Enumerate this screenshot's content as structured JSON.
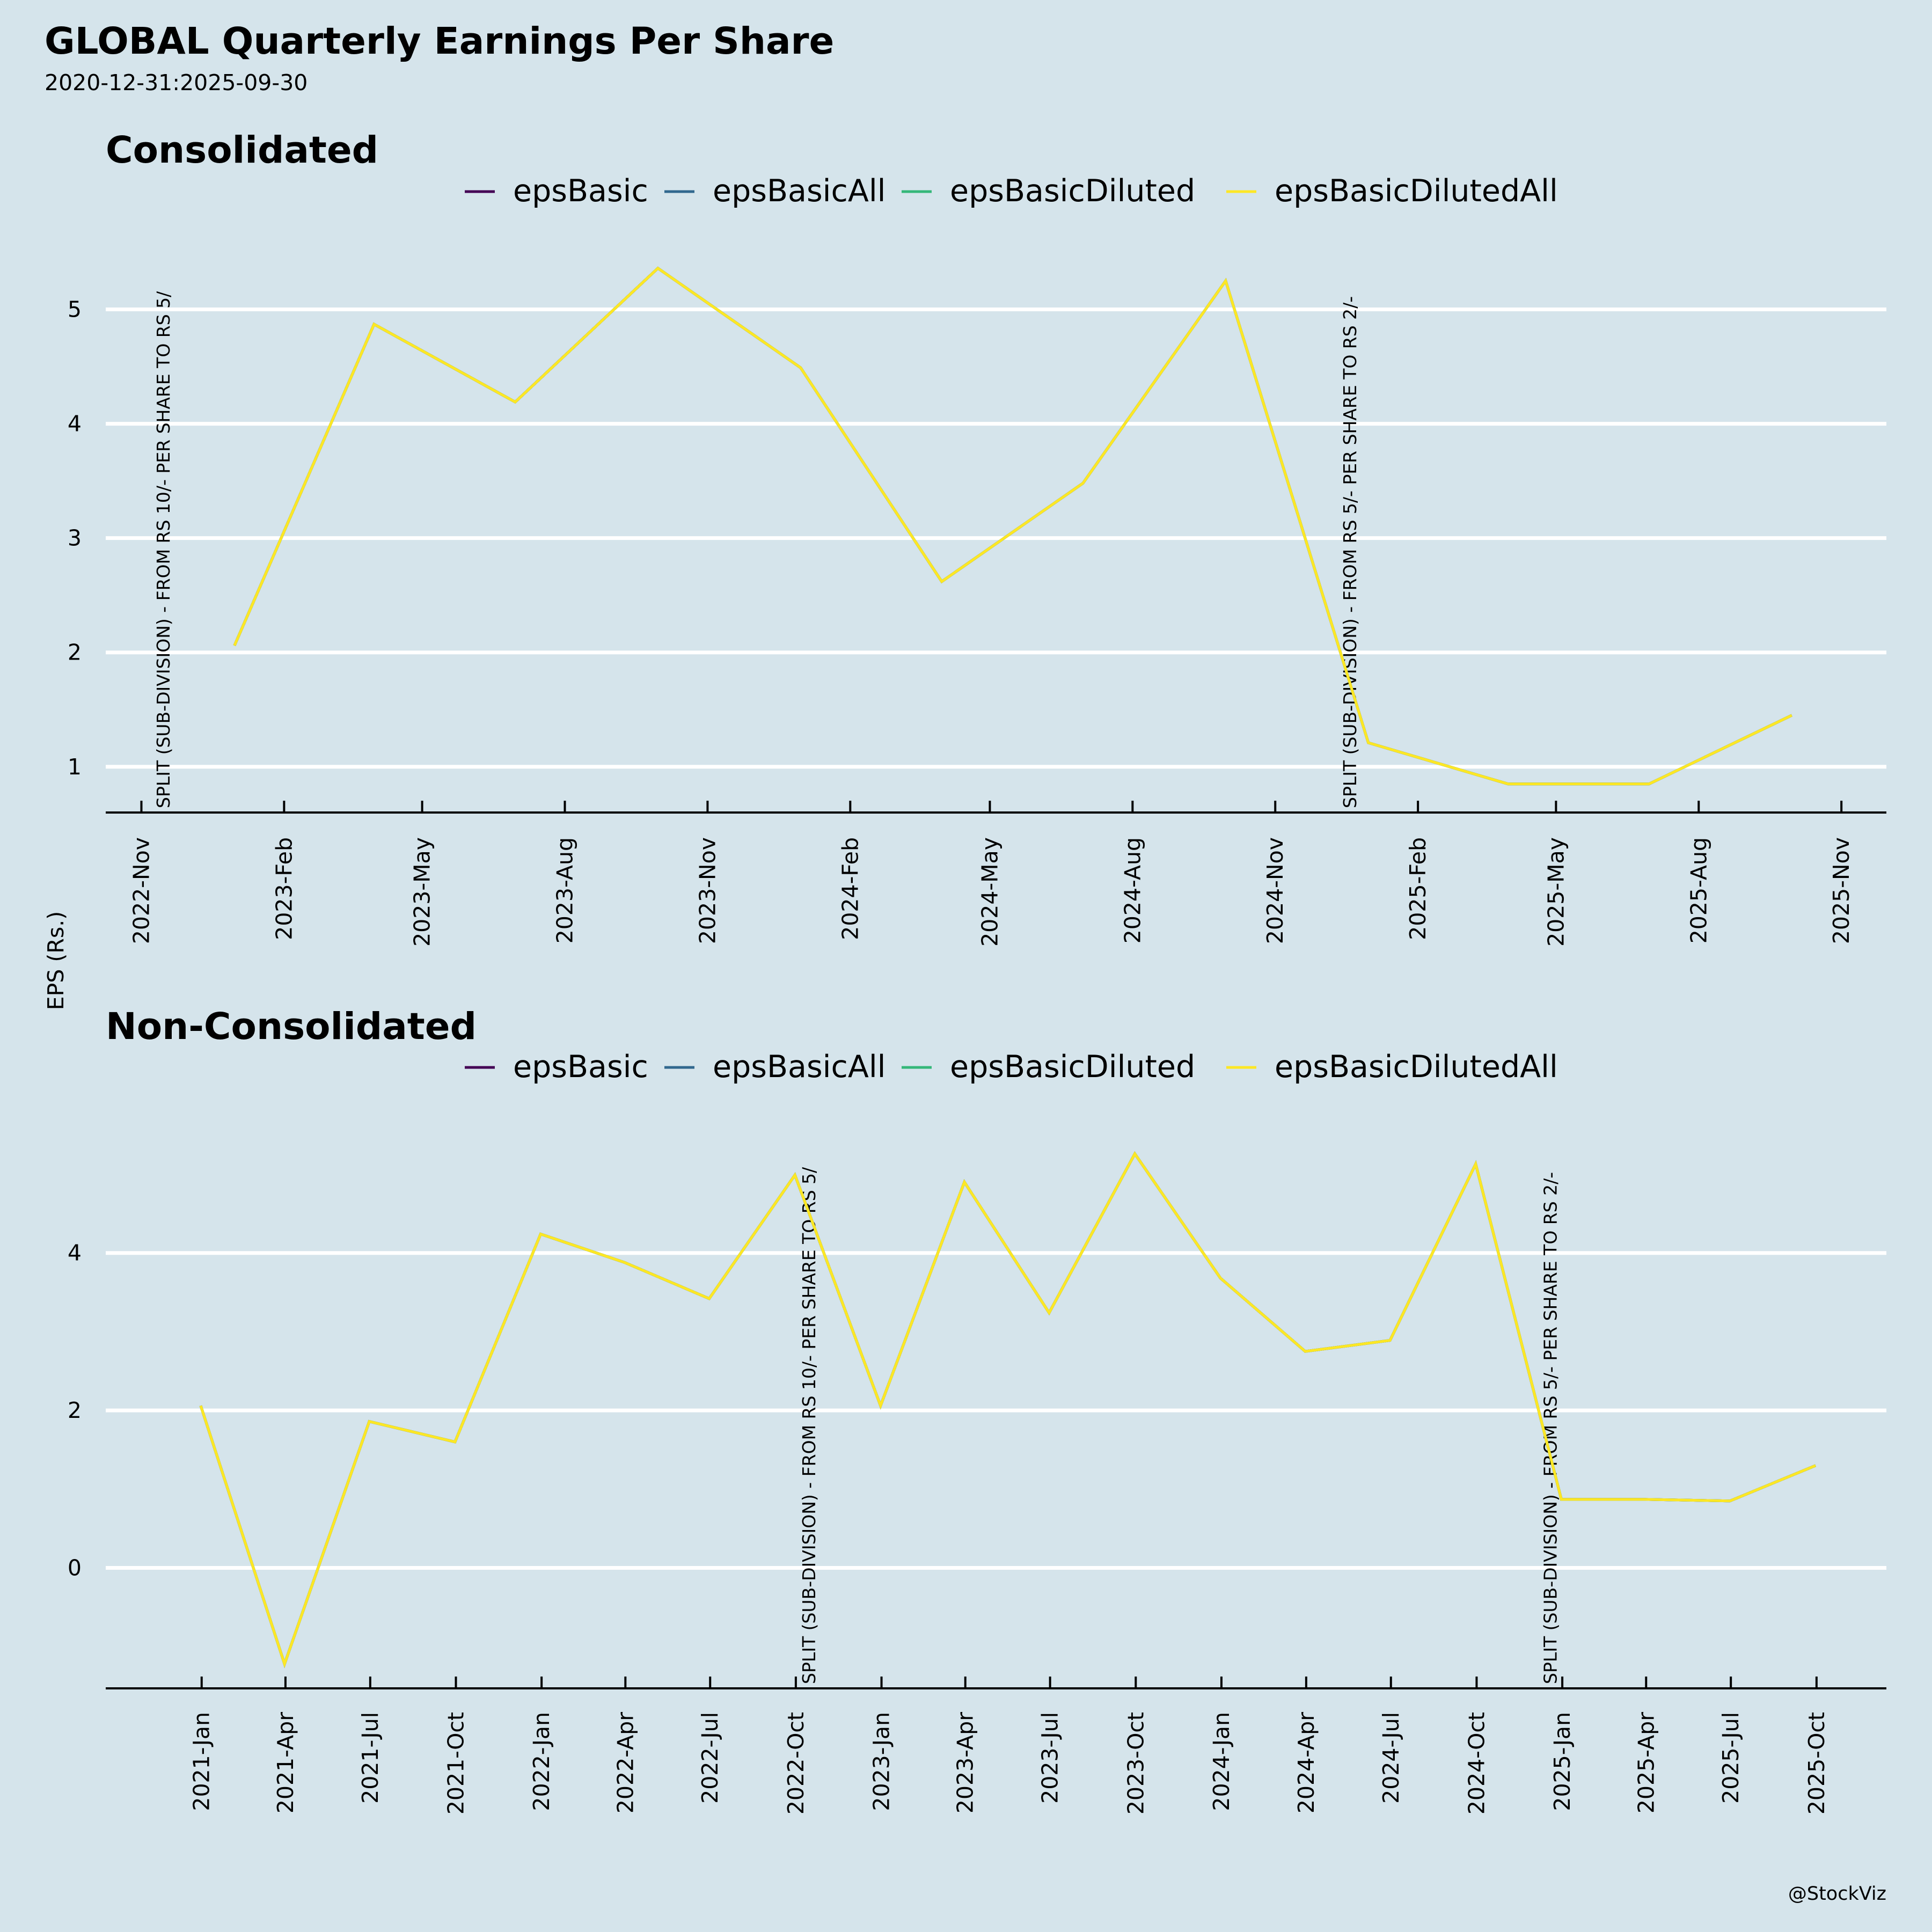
{
  "title": "GLOBAL Quarterly Earnings Per Share",
  "subtitle": "2020-12-31:2025-09-30",
  "ylabel": "EPS (Rs.)",
  "credit": "@StockViz",
  "colors": {
    "background": "#D5E4EB",
    "grid": "#FFFFFF",
    "axis": "#000000",
    "epsBasic": "#440154",
    "epsBasicAll": "#31688E",
    "epsBasicDiluted": "#35B779",
    "epsBasicDilutedAll": "#FDE725"
  },
  "chart_data": [
    {
      "type": "line",
      "title": "Consolidated",
      "legend": [
        "epsBasic",
        "epsBasicAll",
        "epsBasicDiluted",
        "epsBasicDilutedAll"
      ],
      "legend_position": "top-center",
      "ylabel": "EPS (Rs.)",
      "grid": true,
      "ylim": [
        0.6,
        5.5
      ],
      "yticks": [
        1,
        2,
        3,
        4,
        5
      ],
      "xlim": [
        "2022-10-09",
        "2025-11-30"
      ],
      "xticks": [
        {
          "date": "2022-11-01",
          "label": "2022-Nov"
        },
        {
          "date": "2023-02-01",
          "label": "2023-Feb"
        },
        {
          "date": "2023-05-01",
          "label": "2023-May"
        },
        {
          "date": "2023-08-01",
          "label": "2023-Aug"
        },
        {
          "date": "2023-11-01",
          "label": "2023-Nov"
        },
        {
          "date": "2024-02-01",
          "label": "2024-Feb"
        },
        {
          "date": "2024-05-01",
          "label": "2024-May"
        },
        {
          "date": "2024-08-01",
          "label": "2024-Aug"
        },
        {
          "date": "2024-11-01",
          "label": "2024-Nov"
        },
        {
          "date": "2025-02-01",
          "label": "2025-Feb"
        },
        {
          "date": "2025-05-01",
          "label": "2025-May"
        },
        {
          "date": "2025-08-01",
          "label": "2025-Aug"
        },
        {
          "date": "2025-11-01",
          "label": "2025-Nov"
        }
      ],
      "x": [
        "2022-12-31",
        "2023-03-31",
        "2023-06-30",
        "2023-09-30",
        "2023-12-31",
        "2024-03-31",
        "2024-06-30",
        "2024-09-30",
        "2024-12-31",
        "2025-03-31",
        "2025-06-30",
        "2025-09-30"
      ],
      "series": [
        {
          "name": "epsBasic",
          "values": [
            2.06,
            4.87,
            4.19,
            5.36,
            4.49,
            2.62,
            3.48,
            5.25,
            1.21,
            0.85,
            0.85,
            1.45
          ]
        },
        {
          "name": "epsBasicAll",
          "values": [
            2.06,
            4.87,
            4.19,
            5.36,
            4.49,
            2.62,
            3.48,
            5.25,
            1.21,
            0.85,
            0.85,
            1.45
          ]
        },
        {
          "name": "epsBasicDiluted",
          "values": [
            2.06,
            4.87,
            4.19,
            5.36,
            4.49,
            2.62,
            3.48,
            5.25,
            1.21,
            0.85,
            0.85,
            1.45
          ]
        },
        {
          "name": "epsBasicDilutedAll",
          "values": [
            2.06,
            4.87,
            4.19,
            5.36,
            4.49,
            2.62,
            3.48,
            5.25,
            1.21,
            0.85,
            0.85,
            1.45
          ]
        }
      ],
      "annotations": [
        {
          "date": "2022-11-15",
          "text": "SPLIT (SUB-DIVISION) - FROM RS 10/- PER SHARE TO RS 5/"
        },
        {
          "date": "2024-12-19",
          "text": "SPLIT (SUB-DIVISION) - FROM RS 5/- PER SHARE TO RS 2/-"
        }
      ]
    },
    {
      "type": "line",
      "title": "Non-Consolidated",
      "legend": [
        "epsBasic",
        "epsBasicAll",
        "epsBasicDiluted",
        "epsBasicDilutedAll"
      ],
      "legend_position": "top-center",
      "ylabel": "EPS (Rs.)",
      "grid": true,
      "ylim": [
        -1.53,
        5.6
      ],
      "yticks": [
        0,
        2,
        4
      ],
      "xlim": [
        "2020-09-20",
        "2025-12-15"
      ],
      "xticks": [
        {
          "date": "2021-01-01",
          "label": "2021-Jan"
        },
        {
          "date": "2021-04-01",
          "label": "2021-Apr"
        },
        {
          "date": "2021-07-01",
          "label": "2021-Jul"
        },
        {
          "date": "2021-10-01",
          "label": "2021-Oct"
        },
        {
          "date": "2022-01-01",
          "label": "2022-Jan"
        },
        {
          "date": "2022-04-01",
          "label": "2022-Apr"
        },
        {
          "date": "2022-07-01",
          "label": "2022-Jul"
        },
        {
          "date": "2022-10-01",
          "label": "2022-Oct"
        },
        {
          "date": "2023-01-01",
          "label": "2023-Jan"
        },
        {
          "date": "2023-04-01",
          "label": "2023-Apr"
        },
        {
          "date": "2023-07-01",
          "label": "2023-Jul"
        },
        {
          "date": "2023-10-01",
          "label": "2023-Oct"
        },
        {
          "date": "2024-01-01",
          "label": "2024-Jan"
        },
        {
          "date": "2024-04-01",
          "label": "2024-Apr"
        },
        {
          "date": "2024-07-01",
          "label": "2024-Jul"
        },
        {
          "date": "2024-10-01",
          "label": "2024-Oct"
        },
        {
          "date": "2025-01-01",
          "label": "2025-Jan"
        },
        {
          "date": "2025-04-01",
          "label": "2025-Apr"
        },
        {
          "date": "2025-07-01",
          "label": "2025-Jul"
        },
        {
          "date": "2025-10-01",
          "label": "2025-Oct"
        }
      ],
      "x": [
        "2020-12-31",
        "2021-03-31",
        "2021-06-30",
        "2021-09-30",
        "2021-12-31",
        "2022-03-31",
        "2022-06-30",
        "2022-09-30",
        "2022-12-31",
        "2023-03-31",
        "2023-06-30",
        "2023-09-30",
        "2023-12-31",
        "2024-03-31",
        "2024-06-30",
        "2024-09-30",
        "2024-12-31",
        "2025-03-31",
        "2025-06-30",
        "2025-09-30"
      ],
      "series": [
        {
          "name": "epsBasic",
          "values": [
            2.06,
            -1.22,
            1.86,
            1.6,
            4.24,
            3.88,
            3.42,
            4.99,
            2.06,
            4.9,
            3.24,
            5.26,
            3.68,
            2.75,
            2.89,
            5.13,
            0.87,
            0.87,
            0.85,
            1.3
          ]
        },
        {
          "name": "epsBasicAll",
          "values": [
            2.06,
            -1.22,
            1.86,
            1.6,
            4.24,
            3.88,
            3.42,
            4.99,
            2.06,
            4.9,
            3.24,
            5.26,
            3.68,
            2.75,
            2.89,
            5.13,
            0.87,
            0.87,
            0.85,
            1.3
          ]
        },
        {
          "name": "epsBasicDiluted",
          "values": [
            2.06,
            -1.22,
            1.86,
            1.6,
            4.24,
            3.88,
            3.42,
            4.99,
            2.06,
            4.9,
            3.24,
            5.26,
            3.68,
            2.75,
            2.89,
            5.13,
            0.87,
            0.87,
            0.85,
            1.3
          ]
        },
        {
          "name": "epsBasicDilutedAll",
          "values": [
            2.06,
            -1.22,
            1.86,
            1.6,
            4.24,
            3.88,
            3.42,
            4.99,
            2.06,
            4.9,
            3.24,
            5.26,
            3.68,
            2.75,
            2.89,
            5.13,
            0.87,
            0.87,
            0.85,
            1.3
          ]
        }
      ],
      "annotations": [
        {
          "date": "2022-10-15",
          "text": "SPLIT (SUB-DIVISION) - FROM RS 10/- PER SHARE TO RS 5/"
        },
        {
          "date": "2024-12-19",
          "text": "SPLIT (SUB-DIVISION) - FROM RS 5/- PER SHARE TO RS 2/-"
        }
      ]
    }
  ]
}
